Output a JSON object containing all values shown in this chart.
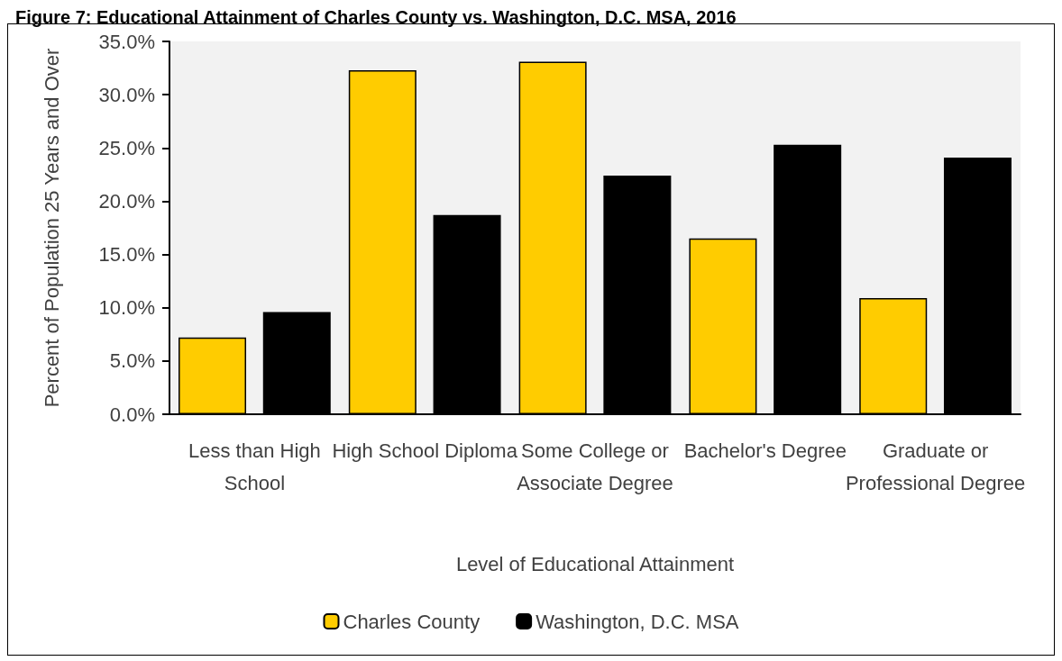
{
  "chart_data": {
    "type": "bar",
    "title": "Figure 7: Educational Attainment of Charles County vs. Washington, D.C. MSA, 2016",
    "xlabel": "Level of Educational Attainment",
    "ylabel": "Percent of Population 25 Years and Over",
    "categories": [
      "Less than High School",
      "High School Diploma",
      "Some College or Associate Degree",
      "Bachelor's Degree",
      "Graduate or Professional Degree"
    ],
    "series": [
      {
        "name": "Charles County",
        "color": "#ffcc00",
        "values": [
          7.2,
          32.3,
          33.1,
          16.5,
          10.9
        ]
      },
      {
        "name": "Washington, D.C. MSA",
        "color": "#000000",
        "values": [
          9.6,
          18.7,
          22.4,
          25.3,
          24.1
        ]
      }
    ],
    "ylim": [
      0,
      35
    ],
    "yticks": [
      {
        "value": 0,
        "label": "0.0%"
      },
      {
        "value": 5,
        "label": "5.0%"
      },
      {
        "value": 10,
        "label": "10.0%"
      },
      {
        "value": 15,
        "label": "15.0%"
      },
      {
        "value": 20,
        "label": "20.0%"
      },
      {
        "value": 25,
        "label": "25.0%"
      },
      {
        "value": 30,
        "label": "30.0%"
      },
      {
        "value": 35,
        "label": "35.0%"
      }
    ],
    "grid": false,
    "legend": "bottom"
  }
}
